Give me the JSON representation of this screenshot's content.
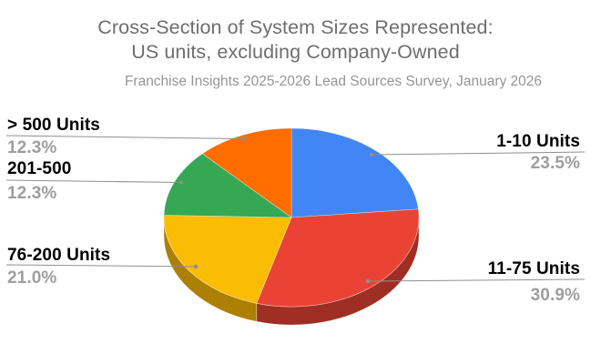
{
  "page": {
    "background": "#ffffff"
  },
  "chart_data": {
    "type": "pie",
    "is_3d": true,
    "title_lines": [
      "Cross-Section of System Sizes Represented:",
      "US units, excluding Company-Owned"
    ],
    "title": "Cross-Section of System Sizes Represented: US units, excluding Company-Owned",
    "subtitle": "Franchise Insights 2025-2026 Lead Sources Survey, January 2026",
    "legend": "callout-labels",
    "start_angle_deg": 0,
    "direction": "clockwise",
    "slices": [
      {
        "label": "1-10 Units",
        "pct": 23.5,
        "pct_text": "23.5%",
        "color": "#4285F4",
        "callout_side": "right"
      },
      {
        "label": "11-75 Units",
        "pct": 30.9,
        "pct_text": "30.9%",
        "color": "#EA4335",
        "callout_side": "right"
      },
      {
        "label": "76-200 Units",
        "pct": 21.0,
        "pct_text": "21.0%",
        "color": "#FBBC04",
        "callout_side": "left"
      },
      {
        "label": "201-500",
        "pct": 12.3,
        "pct_text": "12.3%",
        "color": "#34A853",
        "callout_side": "left"
      },
      {
        "label": "> 500 Units",
        "pct": 12.3,
        "pct_text": "12.3%",
        "color": "#FF6D01",
        "callout_side": "left"
      }
    ],
    "text_colors": {
      "title": "#6e6e6e",
      "subtitle": "#959595",
      "slice_label": "#000000",
      "pct_label": "#9e9e9e",
      "callout_line": "#8f8f8f"
    }
  }
}
